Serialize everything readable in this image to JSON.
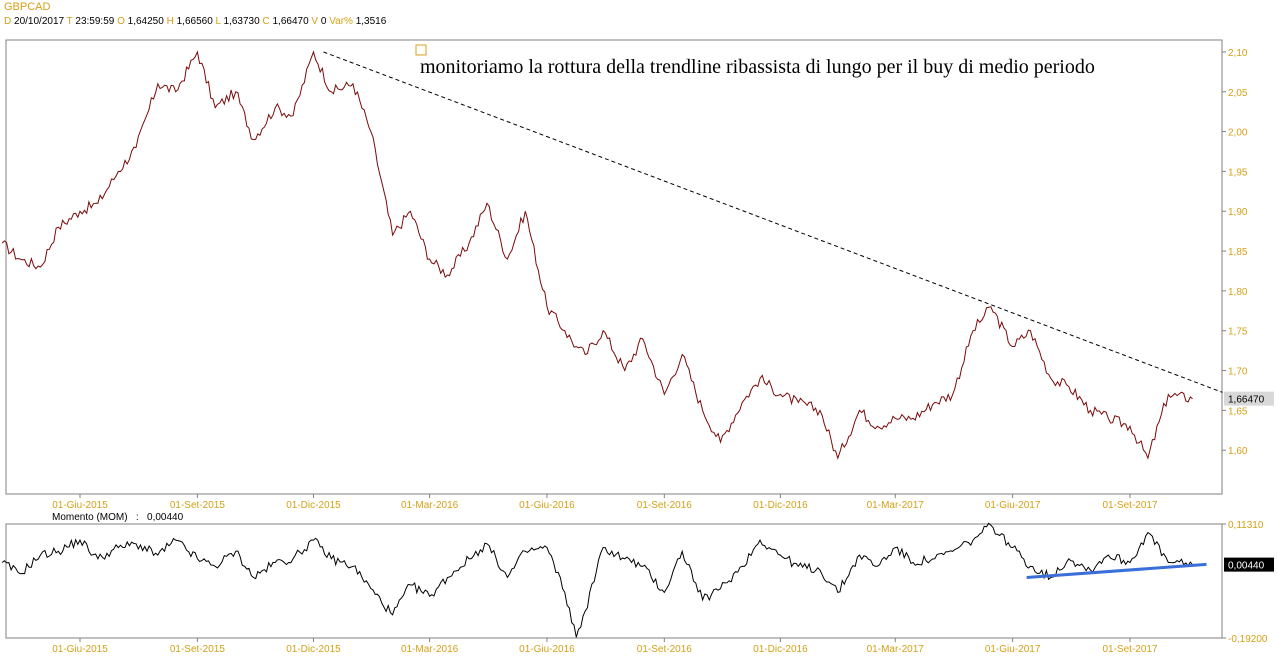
{
  "header": {
    "symbol": "GBPCAD",
    "fields": [
      {
        "key": "D",
        "value": "20/10/2017"
      },
      {
        "key": "T",
        "value": "23:59:59"
      },
      {
        "key": "O",
        "value": "1,64250"
      },
      {
        "key": "H",
        "value": "1,66560"
      },
      {
        "key": "L",
        "value": "1,63730"
      },
      {
        "key": "C",
        "value": "1,66470"
      },
      {
        "key": "V",
        "value": "0"
      },
      {
        "key": "Var%",
        "value": "1,3516"
      }
    ]
  },
  "colors": {
    "price_line": "#7a0a0a",
    "momentum_line": "#000000",
    "trendline": "#000000",
    "support_line": "#3a6ed8",
    "axis_text": "#d4a017",
    "frame": "#808080"
  },
  "chart_data": [
    {
      "type": "line",
      "title": "GBPCAD",
      "xlabel": "",
      "ylabel": "",
      "x_ticks": [
        "01-Giu-2015",
        "01-Set-2015",
        "01-Dic-2015",
        "01-Mar-2016",
        "01-Giu-2016",
        "01-Set-2016",
        "01-Dic-2016",
        "01-Mar-2017",
        "01-Giu-2017",
        "01-Set-2017"
      ],
      "y_ticks": [
        "2,10",
        "2,05",
        "2,00",
        "1,95",
        "1,90",
        "1,85",
        "1,80",
        "1,75",
        "1,70",
        "1,65",
        "1,60"
      ],
      "ylim": [
        1.545,
        2.115
      ],
      "last_value_label": "1,66470",
      "annotation": "monitoriamo la rottura della trendline ribassista di lungo per il buy di medio periodo",
      "grid": false,
      "trendline": {
        "style": "dashed",
        "from": [
          "01-Dic-2015",
          2.1
        ],
        "to": [
          "20-Ott-2017",
          1.66
        ]
      },
      "series": [
        {
          "x": [
            "01-Apr-2015",
            "15-Apr-2015",
            "01-Mag-2015",
            "15-Mag-2015",
            "01-Giu-2015",
            "15-Giu-2015",
            "01-Lug-2015",
            "15-Lug-2015",
            "01-Ago-2015",
            "15-Ago-2015",
            "01-Set-2015",
            "15-Set-2015",
            "01-Ott-2015",
            "15-Ott-2015",
            "01-Nov-2015",
            "15-Nov-2015",
            "01-Dic-2015",
            "15-Dic-2015",
            "01-Gen-2016",
            "15-Gen-2016",
            "01-Feb-2016",
            "15-Feb-2016",
            "01-Mar-2016",
            "15-Mar-2016",
            "01-Apr-2016",
            "15-Apr-2016",
            "01-Mag-2016",
            "15-Mag-2016",
            "01-Giu-2016",
            "15-Giu-2016",
            "24-Giu-2016",
            "01-Lug-2016",
            "15-Lug-2016",
            "01-Ago-2016",
            "15-Ago-2016",
            "01-Set-2016",
            "15-Set-2016",
            "01-Ott-2016",
            "15-Ott-2016",
            "01-Nov-2016",
            "15-Nov-2016",
            "01-Dic-2016",
            "15-Dic-2016",
            "01-Gen-2017",
            "15-Gen-2017",
            "01-Feb-2017",
            "15-Feb-2017",
            "01-Mar-2017",
            "15-Mar-2017",
            "01-Apr-2017",
            "15-Apr-2017",
            "01-Mag-2017",
            "15-Mag-2017",
            "01-Giu-2017",
            "15-Giu-2017",
            "01-Lug-2017",
            "15-Lug-2017",
            "01-Ago-2017",
            "15-Ago-2017",
            "01-Set-2017",
            "15-Set-2017",
            "01-Ott-2017",
            "20-Ott-2017"
          ],
          "values": [
            1.86,
            1.84,
            1.83,
            1.88,
            1.9,
            1.91,
            1.95,
            1.98,
            2.06,
            2.05,
            2.1,
            2.03,
            2.05,
            1.99,
            2.03,
            2.02,
            2.1,
            2.05,
            2.06,
            2.0,
            1.87,
            1.9,
            1.84,
            1.82,
            1.86,
            1.91,
            1.84,
            1.9,
            1.78,
            1.75,
            1.73,
            1.72,
            1.75,
            1.7,
            1.74,
            1.67,
            1.72,
            1.65,
            1.61,
            1.66,
            1.69,
            1.67,
            1.66,
            1.65,
            1.59,
            1.65,
            1.63,
            1.64,
            1.64,
            1.66,
            1.67,
            1.75,
            1.78,
            1.73,
            1.75,
            1.69,
            1.68,
            1.65,
            1.64,
            1.63,
            1.59,
            1.67,
            1.6647
          ]
        }
      ]
    },
    {
      "type": "line",
      "title": "Momento (MOM)",
      "last_value_header": "0,00440",
      "xlabel": "",
      "ylabel": "",
      "x_ticks": [
        "01-Giu-2015",
        "01-Set-2015",
        "01-Dic-2015",
        "01-Mar-2016",
        "01-Giu-2016",
        "01-Set-2016",
        "01-Dic-2016",
        "01-Mar-2017",
        "01-Giu-2017",
        "01-Set-2017"
      ],
      "y_ticks": [
        "0,11310",
        "-0,19200"
      ],
      "ylim": [
        -0.192,
        0.1131
      ],
      "last_value_label": "0,00440",
      "grid": false,
      "support_line": {
        "style": "solid",
        "from": [
          "01-Giu-2017",
          -0.03
        ],
        "to": [
          "20-Ott-2017",
          0.005
        ]
      },
      "series": [
        {
          "x": [
            "01-Apr-2015",
            "15-Apr-2015",
            "01-Mag-2015",
            "15-Mag-2015",
            "01-Giu-2015",
            "15-Giu-2015",
            "01-Lug-2015",
            "15-Lug-2015",
            "01-Ago-2015",
            "15-Ago-2015",
            "01-Set-2015",
            "15-Set-2015",
            "01-Ott-2015",
            "15-Ott-2015",
            "01-Nov-2015",
            "15-Nov-2015",
            "01-Dic-2015",
            "15-Dic-2015",
            "01-Gen-2016",
            "15-Gen-2016",
            "01-Feb-2016",
            "15-Feb-2016",
            "01-Mar-2016",
            "15-Mar-2016",
            "01-Apr-2016",
            "15-Apr-2016",
            "01-Mag-2016",
            "15-Mag-2016",
            "01-Giu-2016",
            "15-Giu-2016",
            "24-Giu-2016",
            "01-Lug-2016",
            "15-Lug-2016",
            "01-Ago-2016",
            "15-Ago-2016",
            "01-Set-2016",
            "15-Set-2016",
            "01-Ott-2016",
            "15-Ott-2016",
            "01-Nov-2016",
            "15-Nov-2016",
            "01-Dic-2016",
            "15-Dic-2016",
            "01-Gen-2017",
            "15-Gen-2017",
            "01-Feb-2017",
            "15-Feb-2017",
            "01-Mar-2017",
            "15-Mar-2017",
            "01-Apr-2017",
            "15-Apr-2017",
            "01-Mag-2017",
            "15-Mag-2017",
            "01-Giu-2017",
            "15-Giu-2017",
            "01-Lug-2017",
            "15-Lug-2017",
            "01-Ago-2017",
            "15-Ago-2017",
            "01-Set-2017",
            "15-Set-2017",
            "01-Ott-2017",
            "20-Ott-2017"
          ],
          "values": [
            0.01,
            -0.02,
            0.03,
            0.04,
            0.07,
            0.02,
            0.05,
            0.06,
            0.03,
            0.07,
            0.02,
            0.0,
            0.04,
            -0.03,
            0.01,
            0.02,
            0.07,
            0.02,
            0.0,
            -0.06,
            -0.13,
            -0.05,
            -0.08,
            -0.03,
            0.02,
            0.06,
            -0.03,
            0.04,
            0.05,
            -0.07,
            -0.19,
            -0.12,
            0.05,
            0.02,
            0.0,
            -0.07,
            0.04,
            -0.09,
            -0.06,
            0.0,
            0.07,
            0.03,
            0.0,
            -0.01,
            -0.07,
            0.03,
            0.0,
            0.05,
            0.01,
            0.02,
            0.04,
            0.07,
            0.11,
            0.05,
            0.0,
            -0.03,
            0.02,
            -0.01,
            0.03,
            0.01,
            0.09,
            0.01,
            0.0044
          ]
        }
      ]
    }
  ]
}
